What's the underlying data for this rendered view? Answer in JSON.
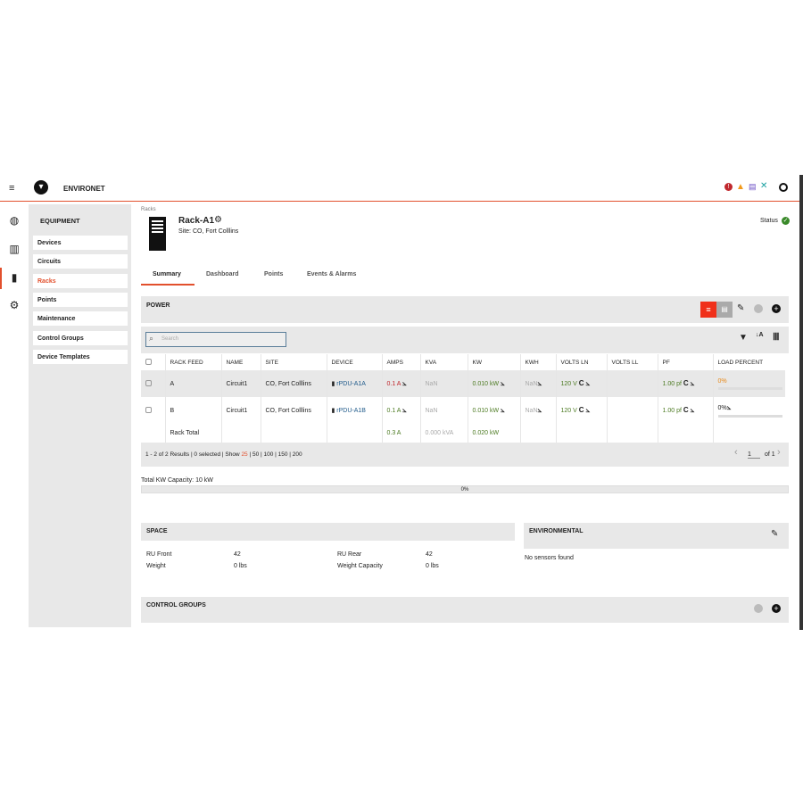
{
  "app": {
    "name": "ENVIRONET"
  },
  "header_icons": [
    "menu-icon",
    "logo-icon",
    "critical-alarm-icon",
    "warning-icon",
    "device-icon",
    "tools-icon",
    "user-icon"
  ],
  "rail": [
    "dashboard-icon",
    "reports-icon",
    "equipment-icon",
    "settings-icon"
  ],
  "sidebar": {
    "title": "EQUIPMENT",
    "items": [
      {
        "label": "Devices"
      },
      {
        "label": "Circuits"
      },
      {
        "label": "Racks",
        "active": true
      },
      {
        "label": "Points"
      },
      {
        "label": "Maintenance"
      },
      {
        "label": "Control Groups"
      },
      {
        "label": "Device Templates"
      }
    ]
  },
  "breadcrumb": "Racks",
  "rack": {
    "name": "Rack-A1",
    "site": "Site: CO, Fort Colllins",
    "status_label": "Status"
  },
  "tabs": [
    {
      "label": "Summary",
      "active": true
    },
    {
      "label": "Dashboard"
    },
    {
      "label": "Points"
    },
    {
      "label": "Events & Alarms"
    }
  ],
  "power": {
    "title": "POWER",
    "search_placeholder": "Search",
    "columns": [
      "RACK FEED",
      "NAME",
      "SITE",
      "DEVICE",
      "AMPS",
      "KVA",
      "KW",
      "KWH",
      "VOLTS LN",
      "VOLTS LL",
      "PF",
      "LOAD PERCENT"
    ],
    "rows": [
      {
        "feed": "A",
        "name": "Circuit1",
        "site": "CO, Fort Colllins",
        "device": "rPDU-A1A",
        "amps": "0.1 A",
        "kva": "NaN",
        "kw": "0.010 kW",
        "kwh": "NaN",
        "volts_ln": "120 V",
        "volts_ll": "",
        "pf": "1.00 pf",
        "load": "0%",
        "load_value": 0
      },
      {
        "feed": "B",
        "name": "Circuit1",
        "site": "CO, Fort Colllins",
        "device": "rPDU-A1B",
        "amps": "0.1 A",
        "kva": "NaN",
        "kw": "0.010 kW",
        "kwh": "NaN",
        "volts_ln": "120 V",
        "volts_ll": "",
        "pf": "1.00 pf",
        "load": "0%",
        "load_value": 0
      }
    ],
    "total": {
      "label": "Rack Total",
      "amps": "0.3 A",
      "kva": "0.000 kVA",
      "kw": "0.020 kW"
    },
    "footer": {
      "results": "1 - 2 of 2 Results | 0 selected | Show ",
      "show_active": "25",
      "show_rest": " | 50 | 100 | 150 | 200",
      "page": "1",
      "of": "of 1"
    }
  },
  "capacity": {
    "label": "Total KW Capacity: 10 kW",
    "percent": "0%",
    "value": 0
  },
  "space": {
    "title": "SPACE",
    "ru_front_label": "RU Front",
    "ru_front": "42",
    "ru_rear_label": "RU Rear",
    "ru_rear": "42",
    "weight_label": "Weight",
    "weight": "0 lbs",
    "weight_cap_label": "Weight Capacity",
    "weight_cap": "0 lbs"
  },
  "environmental": {
    "title": "ENVIRONMENTAL",
    "empty": "No sensors found"
  },
  "control_groups": {
    "title": "CONTROL GROUPS"
  },
  "colors": {
    "accent": "#e2502d",
    "status_ok": "#3a8a2a",
    "value_green": "#4d7b23",
    "value_red": "#c0282d"
  }
}
